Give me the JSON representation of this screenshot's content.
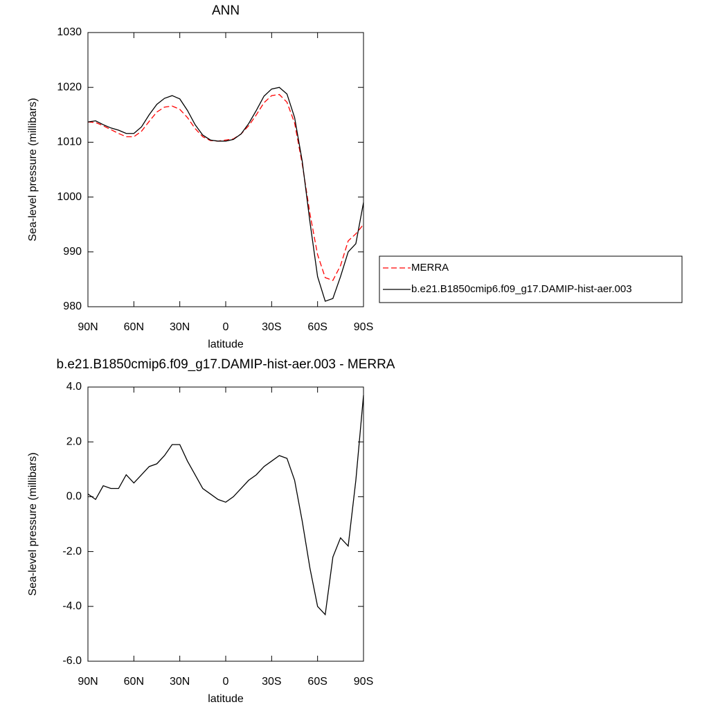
{
  "chart_data": [
    {
      "type": "line",
      "title": "ANN",
      "xlabel": "latitude",
      "ylabel": "Sea-level pressure (millibars)",
      "x": [
        90,
        85,
        80,
        75,
        70,
        65,
        60,
        55,
        50,
        45,
        40,
        35,
        30,
        25,
        20,
        15,
        10,
        5,
        0,
        -5,
        -10,
        -15,
        -20,
        -25,
        -30,
        -35,
        -40,
        -45,
        -50,
        -55,
        -60,
        -65,
        -70,
        -75,
        -80,
        -85,
        -90
      ],
      "series": [
        {
          "name": "MERRA",
          "color": "#ff0000",
          "style": "dashed",
          "values": [
            1013.7,
            1013.6,
            1013.0,
            1012.3,
            1011.6,
            1011.0,
            1011.0,
            1012.0,
            1013.8,
            1015.5,
            1016.4,
            1016.6,
            1016.0,
            1014.5,
            1012.5,
            1011.0,
            1010.3,
            1010.2,
            1010.4,
            1010.6,
            1011.5,
            1013.0,
            1015.0,
            1017.2,
            1018.5,
            1018.7,
            1017.3,
            1013.5,
            1006.0,
            997.0,
            989.5,
            985.3,
            984.8,
            987.5,
            992.0,
            993.3,
            995.0
          ]
        },
        {
          "name": "b.e21.B1850cmip6.f09_g17.DAMIP-hist-aer.003",
          "color": "#000000",
          "style": "solid",
          "values": [
            1013.7,
            1013.9,
            1013.2,
            1012.6,
            1012.2,
            1011.6,
            1011.6,
            1012.8,
            1015.0,
            1016.9,
            1018.0,
            1018.5,
            1017.9,
            1015.8,
            1013.2,
            1011.3,
            1010.4,
            1010.2,
            1010.2,
            1010.5,
            1011.5,
            1013.4,
            1015.8,
            1018.4,
            1019.7,
            1020.0,
            1018.8,
            1014.5,
            1006.5,
            995.5,
            985.5,
            981.0,
            981.5,
            985.5,
            990.0,
            991.5,
            999.0
          ]
        }
      ],
      "xlim": [
        90,
        -90
      ],
      "xticks": [
        {
          "value": 90,
          "label": "90N"
        },
        {
          "value": 60,
          "label": "60N"
        },
        {
          "value": 30,
          "label": "30N"
        },
        0,
        {
          "value": -30,
          "label": "30S"
        },
        {
          "value": -60,
          "label": "60S"
        },
        {
          "value": -90,
          "label": "90S"
        }
      ],
      "ylim": [
        980,
        1030
      ],
      "yticks": [
        980,
        990,
        1000,
        1010,
        1020,
        1030
      ],
      "legend": "right"
    },
    {
      "type": "line",
      "title": "b.e21.B1850cmip6.f09_g17.DAMIP-hist-aer.003 - MERRA",
      "xlabel": "latitude",
      "ylabel": "Sea-level pressure (millibars)",
      "x": [
        90,
        85,
        80,
        75,
        70,
        65,
        60,
        55,
        50,
        45,
        40,
        35,
        30,
        25,
        20,
        15,
        10,
        5,
        0,
        -5,
        -10,
        -15,
        -20,
        -25,
        -30,
        -35,
        -40,
        -45,
        -50,
        -55,
        -60,
        -65,
        -70,
        -75,
        -80,
        -85,
        -90
      ],
      "series": [
        {
          "color": "#000000",
          "style": "solid",
          "values": [
            0.1,
            -0.1,
            0.4,
            0.3,
            0.3,
            0.8,
            0.5,
            0.8,
            1.1,
            1.2,
            1.5,
            1.9,
            1.9,
            1.3,
            0.8,
            0.3,
            0.1,
            -0.1,
            -0.2,
            0.0,
            0.3,
            0.6,
            0.8,
            1.1,
            1.3,
            1.5,
            1.4,
            0.6,
            -0.9,
            -2.6,
            -4.0,
            -4.3,
            -2.2,
            -1.5,
            -1.8,
            0.6,
            3.7
          ]
        }
      ],
      "xlim": [
        90,
        -90
      ],
      "xticks": [
        {
          "value": 90,
          "label": "90N"
        },
        {
          "value": 60,
          "label": "60N"
        },
        {
          "value": 30,
          "label": "30N"
        },
        0,
        {
          "value": -30,
          "label": "30S"
        },
        {
          "value": -60,
          "label": "60S"
        },
        {
          "value": -90,
          "label": "90S"
        }
      ],
      "ylim": [
        -6,
        4
      ],
      "yticks": [
        {
          "value": -6,
          "label": "-6.0"
        },
        {
          "value": -4,
          "label": "-4.0"
        },
        {
          "value": -2,
          "label": "-2.0"
        },
        {
          "value": 0,
          "label": "0.0"
        },
        {
          "value": 2,
          "label": "2.0"
        },
        {
          "value": 4,
          "label": "4.0"
        }
      ]
    }
  ]
}
